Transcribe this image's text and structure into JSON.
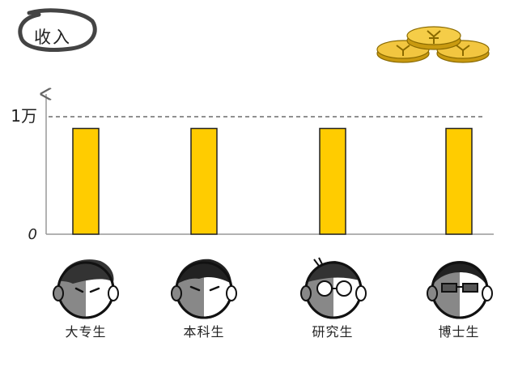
{
  "title": "收入",
  "chart_data": {
    "type": "bar",
    "categories": [
      "大专生",
      "本科生",
      "研究生",
      "博士生"
    ],
    "values": [
      9000,
      9000,
      9000,
      9000
    ],
    "yticks": [
      {
        "value": 0,
        "label": "0"
      },
      {
        "value": 10000,
        "label": "1万"
      }
    ],
    "reference_line": {
      "value": 10000,
      "style": "dashed"
    },
    "ylim": [
      0,
      12000
    ],
    "bar_color": "#FFCC00",
    "bar_outline_color": "#222222",
    "grid": false
  },
  "icons": {
    "title_frame": "hand-drawn-circle",
    "coins": "gold-coin-stack-icon",
    "faces": [
      "student-face-icon",
      "student-face-icon",
      "student-face-with-round-glasses-icon",
      "student-face-with-sunglasses-icon"
    ]
  }
}
